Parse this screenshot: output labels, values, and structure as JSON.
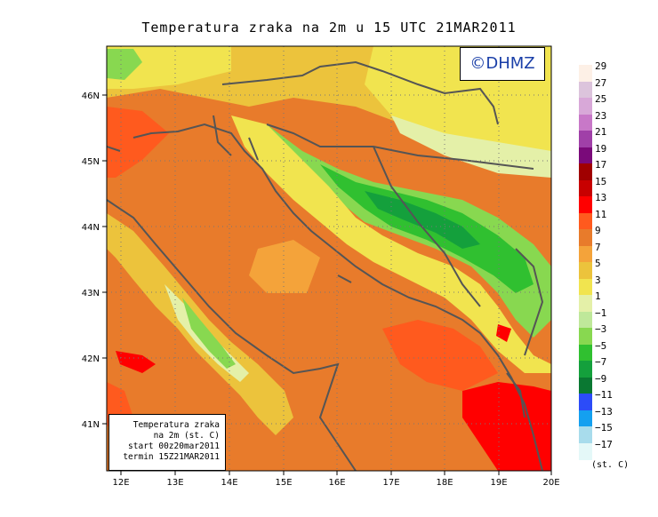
{
  "title": "Temperatura zraka na 2m u 15 UTC 21MAR2011",
  "brand": "©DHMZ",
  "info": {
    "line1": "Temperatura zraka",
    "line2": "na 2m (st. C)",
    "line3": "start 00z20mar2011",
    "line4": "termin 15Z21MAR2011"
  },
  "axes": {
    "lon_labels": [
      "12E",
      "13E",
      "14E",
      "15E",
      "16E",
      "17E",
      "18E",
      "19E",
      "20E"
    ],
    "lat_labels": [
      "46N",
      "45N",
      "44N",
      "43N",
      "42N",
      "41N"
    ]
  },
  "legend": {
    "units": "(st. C)",
    "labels": [
      "29",
      "27",
      "25",
      "23",
      "21",
      "19",
      "17",
      "15",
      "13",
      "11",
      "9",
      "7",
      "5",
      "3",
      "1",
      "−1",
      "−3",
      "−5",
      "−7",
      "−9",
      "−11",
      "−13",
      "−15",
      "−17"
    ],
    "colors": [
      "#fdf0e6",
      "#dcc4dc",
      "#d8a8d8",
      "#c878c8",
      "#a040a8",
      "#7a0a7a",
      "#a00000",
      "#c80000",
      "#ff0000",
      "#ff5a1e",
      "#e87b2b",
      "#f4a33a",
      "#ecc33c",
      "#f1e44f",
      "#e4f0a8",
      "#bfe89a",
      "#88d850",
      "#30c030",
      "#14a03c",
      "#0a7832",
      "#2c4cf8",
      "#14a0f0",
      "#a8dcec",
      "#e4f8f8"
    ]
  },
  "chart_data": {
    "type": "heatmap",
    "title": "Temperatura zraka na 2m u 15 UTC 21MAR2011",
    "x_range": [
      11.85,
      20.0
    ],
    "y_range": [
      40.25,
      46.75
    ],
    "x_ticks": [
      "12E",
      "13E",
      "14E",
      "15E",
      "16E",
      "17E",
      "18E",
      "19E",
      "20E"
    ],
    "y_ticks": [
      "46N",
      "45N",
      "44N",
      "43N",
      "42N",
      "41N"
    ],
    "units": "st. C",
    "color_scale": [
      -17,
      -15,
      -13,
      -11,
      -9,
      -7,
      -5,
      -3,
      -1,
      1,
      3,
      5,
      7,
      9,
      11,
      13,
      15,
      17,
      19,
      21,
      23,
      25,
      27,
      29
    ]
  }
}
